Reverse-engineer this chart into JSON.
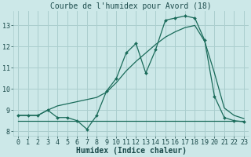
{
  "title": "Courbe de l'humidex pour Avord (18)",
  "xlabel": "Humidex (Indice chaleur)",
  "background_color": "#cce8e8",
  "grid_color": "#aacece",
  "line_color": "#1a6b5a",
  "xlim": [
    -0.5,
    23.5
  ],
  "ylim": [
    7.8,
    13.7
  ],
  "yticks": [
    8,
    9,
    10,
    11,
    12,
    13
  ],
  "xticks": [
    0,
    1,
    2,
    3,
    4,
    5,
    6,
    7,
    8,
    9,
    10,
    11,
    12,
    13,
    14,
    15,
    16,
    17,
    18,
    19,
    20,
    21,
    22,
    23
  ],
  "line1_x": [
    0,
    1,
    2,
    3,
    4,
    5,
    6,
    7,
    8,
    9,
    10,
    11,
    12,
    13,
    14,
    15,
    16,
    17,
    18,
    19,
    20,
    21,
    22,
    23
  ],
  "line1_y": [
    8.5,
    8.5,
    8.5,
    8.5,
    8.5,
    8.5,
    8.5,
    8.5,
    8.5,
    8.5,
    8.5,
    8.5,
    8.5,
    8.5,
    8.5,
    8.5,
    8.5,
    8.5,
    8.5,
    8.5,
    8.5,
    8.5,
    8.5,
    8.5
  ],
  "line2_x": [
    0,
    1,
    2,
    3,
    4,
    5,
    6,
    7,
    8,
    9,
    10,
    11,
    12,
    13,
    14,
    15,
    16,
    17,
    18,
    19,
    20,
    21,
    22,
    23
  ],
  "line2_y": [
    8.75,
    8.75,
    8.75,
    9.0,
    8.65,
    8.65,
    8.5,
    8.1,
    8.75,
    9.9,
    10.5,
    11.7,
    12.15,
    10.75,
    11.85,
    13.25,
    13.35,
    13.45,
    13.35,
    12.3,
    9.65,
    8.65,
    8.5,
    8.45
  ],
  "line3_x": [
    0,
    1,
    2,
    3,
    4,
    5,
    6,
    7,
    8,
    9,
    10,
    11,
    12,
    13,
    14,
    15,
    16,
    17,
    18,
    19,
    20,
    21,
    22,
    23
  ],
  "line3_y": [
    8.75,
    8.75,
    8.75,
    9.0,
    9.2,
    9.3,
    9.4,
    9.5,
    9.6,
    9.85,
    10.3,
    10.85,
    11.3,
    11.7,
    12.1,
    12.45,
    12.7,
    12.9,
    13.0,
    12.25,
    10.75,
    9.1,
    8.75,
    8.6
  ],
  "title_fontsize": 7,
  "tick_fontsize": 6,
  "xlabel_fontsize": 7
}
